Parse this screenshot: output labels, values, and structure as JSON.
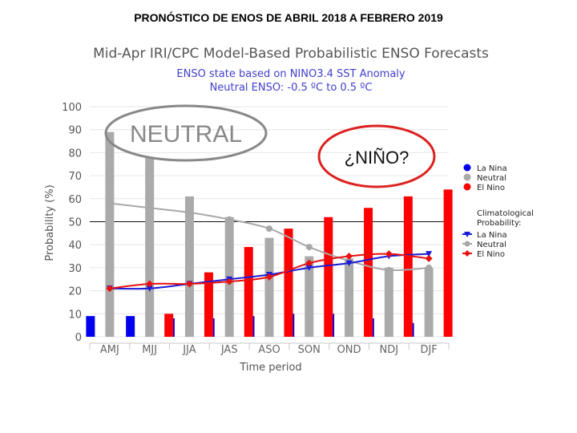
{
  "slide": {
    "title": "PRONÓSTICO DE ENOS DE ABRIL 2018 A FEBRERO 2019"
  },
  "annotations": {
    "neutral": "NEUTRAL",
    "nino": "¿NIÑO?"
  },
  "colors": {
    "la_nina": "#0000ee",
    "neutral": "#aaaaaa",
    "el_nino": "#ff0000",
    "clim_la_nina": "#1a1ad6",
    "clim_neutral": "#a8a8a8",
    "clim_el_nino": "#e81010",
    "ellipse_neutral": "#888888",
    "ellipse_nino": "#dd2020",
    "title": "#555555",
    "subtitle": "#4040cc"
  },
  "chart_data": {
    "type": "bar",
    "title": "Mid-Apr IRI/CPC Model-Based Probabilistic ENSO Forecasts",
    "subtitle1": "ENSO state based on NINO3.4 SST Anomaly",
    "subtitle2": "Neutral ENSO: -0.5 ºC to 0.5 ºC",
    "xlabel": "Time period",
    "ylabel": "Probability (%)",
    "ylim": [
      0,
      100
    ],
    "yticks": [
      0,
      10,
      20,
      30,
      40,
      50,
      60,
      70,
      80,
      90,
      100
    ],
    "categories": [
      "AMJ",
      "MJJ",
      "JJA",
      "JAS",
      "ASO",
      "SON",
      "OND",
      "NDJ",
      "DJF"
    ],
    "series": [
      {
        "name": "La Nina",
        "values": [
          9,
          9,
          8,
          8,
          9,
          10,
          10,
          8,
          6
        ]
      },
      {
        "name": "Neutral",
        "values": [
          89,
          78,
          61,
          52,
          43,
          35,
          34,
          30,
          30
        ]
      },
      {
        "name": "El Nino",
        "values": [
          0,
          10,
          28,
          39,
          47,
          52,
          56,
          61,
          64
        ]
      }
    ],
    "climatology": [
      {
        "name": "La Nina",
        "values": [
          21,
          21,
          23,
          25,
          27,
          30,
          32,
          35,
          36
        ]
      },
      {
        "name": "Neutral",
        "values": [
          58,
          56,
          54,
          51,
          47,
          39,
          33,
          29,
          30
        ]
      },
      {
        "name": "El Nino",
        "values": [
          21,
          23,
          23,
          24,
          26,
          32,
          35,
          36,
          34
        ]
      }
    ],
    "legend": {
      "items": [
        "La Nina",
        "Neutral",
        "El Nino"
      ],
      "clim_title_1": "Climatological",
      "clim_title_2": "Probability:",
      "clim_items": [
        "La Nina",
        "Neutral",
        "El Nino"
      ],
      "position": "right"
    },
    "reference_line": 50
  }
}
